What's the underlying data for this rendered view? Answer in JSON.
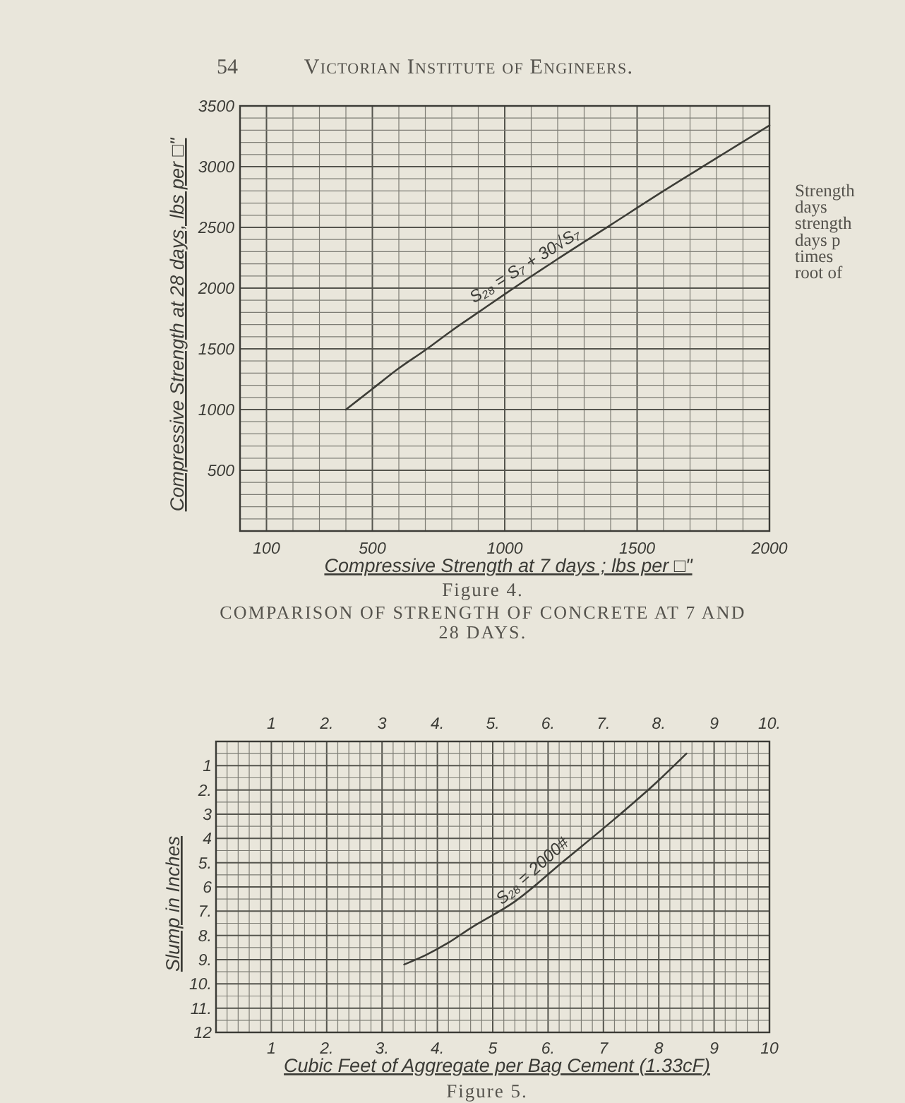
{
  "chart_data": [
    {
      "type": "line",
      "title": "Figure 4.",
      "subtitle": "COMPARISON OF STRENGTH OF CONCRETE AT 7 AND 28 DAYS.",
      "xlabel": "Compressive Strength at 7 days ; lbs per □\"",
      "ylabel": "Compressive Strength at 28 days, lbs per □\"",
      "annotations": [
        "54",
        "Victorian Institute of Engineers.",
        "Strength\ndays\nstrength\ndays p\ntimes\nroot of",
        {
          "text": "S₂₈ = S₇ + 30√S₇",
          "x": 1100,
          "y": 2100
        }
      ],
      "x": [
        400,
        500,
        600,
        700,
        800,
        900,
        1000,
        1200,
        1400,
        1600,
        1800,
        2000
      ],
      "values": [
        1000,
        1170,
        1340,
        1490,
        1650,
        1800,
        1950,
        2240,
        2520,
        2800,
        3070,
        3340
      ],
      "color": "#3d3d37",
      "xlim": [
        0,
        2000
      ],
      "ylim": [
        0,
        3500
      ],
      "xticks": [
        100,
        {
          "value": 200,
          "label": null
        },
        {
          "value": 300,
          "label": null
        },
        {
          "value": 400,
          "label": null
        },
        500,
        {
          "value": 600,
          "label": null
        },
        {
          "value": 700,
          "label": null
        },
        {
          "value": 800,
          "label": null
        },
        {
          "value": 900,
          "label": null
        },
        1000,
        {
          "value": 1100,
          "label": null
        },
        {
          "value": 1200,
          "label": null
        },
        {
          "value": 1300,
          "label": null
        },
        {
          "value": 1400,
          "label": null
        },
        1500,
        {
          "value": 1600,
          "label": null
        },
        {
          "value": 1700,
          "label": null
        },
        {
          "value": 1800,
          "label": null
        },
        {
          "value": 1900,
          "label": null
        },
        2000
      ],
      "yticks": [
        {
          "value": 100,
          "label": null
        },
        {
          "value": 200,
          "label": null
        },
        {
          "value": 300,
          "label": null
        },
        {
          "value": 400,
          "label": null
        },
        500,
        {
          "value": 600,
          "label": null
        },
        {
          "value": 700,
          "label": null
        },
        {
          "value": 800,
          "label": null
        },
        {
          "value": 900,
          "label": null
        },
        1000,
        {
          "value": 1100,
          "label": null
        },
        {
          "value": 1200,
          "label": null
        },
        {
          "value": 1300,
          "label": null
        },
        {
          "value": 1400,
          "label": null
        },
        1500,
        {
          "value": 1600,
          "label": null
        },
        {
          "value": 1700,
          "label": null
        },
        {
          "value": 1800,
          "label": null
        },
        {
          "value": 1900,
          "label": null
        },
        2000,
        {
          "value": 2100,
          "label": null
        },
        {
          "value": 2200,
          "label": null
        },
        {
          "value": 2300,
          "label": null
        },
        {
          "value": 2400,
          "label": null
        },
        2500,
        {
          "value": 2600,
          "label": null
        },
        {
          "value": 2700,
          "label": null
        },
        {
          "value": 2800,
          "label": null
        },
        {
          "value": 2900,
          "label": null
        },
        3000,
        {
          "value": 3100,
          "label": null
        },
        {
          "value": 3200,
          "label": null
        },
        {
          "value": 3300,
          "label": null
        },
        {
          "value": 3400,
          "label": null
        },
        3500
      ],
      "grid": true
    },
    {
      "type": "line",
      "title": "Figure 5.",
      "xlabel": "Cubic Feet of Aggregate per Bag Cement (1.33cF)",
      "ylabel": "Slump in Inches",
      "annotations": [
        {
          "text": "S₂₈ = 2000#",
          "x": 5.9,
          "y": 5.8
        }
      ],
      "x": [
        3.4,
        3.8,
        4.2,
        4.6,
        5.4,
        6.3,
        7.2,
        8.0,
        8.5
      ],
      "values": [
        9.2,
        8.8,
        8.3,
        7.7,
        6.6,
        4.9,
        3.2,
        1.6,
        0.5
      ],
      "color": "#3d3d37",
      "xlim": [
        0,
        10
      ],
      "ylim": [
        12,
        0
      ],
      "xticks": [
        {
          "value": 0.2,
          "label": null
        },
        {
          "value": 0.4,
          "label": null
        },
        {
          "value": 0.6,
          "label": null
        },
        {
          "value": 0.8,
          "label": null
        },
        1,
        {
          "value": 1.2,
          "label": null
        },
        {
          "value": 1.4,
          "label": null
        },
        {
          "value": 1.6,
          "label": null
        },
        {
          "value": 1.8,
          "label": null
        },
        {
          "value": 2,
          "label": "2."
        },
        {
          "value": 2.2,
          "label": null
        },
        {
          "value": 2.4,
          "label": null
        },
        {
          "value": 2.6,
          "label": null
        },
        {
          "value": 2.8,
          "label": null
        },
        {
          "value": 3,
          "label": "3."
        },
        {
          "value": 3.2,
          "label": null
        },
        {
          "value": 3.4,
          "label": null
        },
        {
          "value": 3.6,
          "label": null
        },
        {
          "value": 3.8,
          "label": null
        },
        {
          "value": 4,
          "label": "4."
        },
        {
          "value": 4.2,
          "label": null
        },
        {
          "value": 4.4,
          "label": null
        },
        {
          "value": 4.6,
          "label": null
        },
        {
          "value": 4.8,
          "label": null
        },
        5,
        {
          "value": 5.2,
          "label": null
        },
        {
          "value": 5.4,
          "label": null
        },
        {
          "value": 5.6,
          "label": null
        },
        {
          "value": 5.8,
          "label": null
        },
        {
          "value": 6,
          "label": "6."
        },
        {
          "value": 6.2,
          "label": null
        },
        {
          "value": 6.4,
          "label": null
        },
        {
          "value": 6.6,
          "label": null
        },
        {
          "value": 6.8,
          "label": null
        },
        7,
        {
          "value": 7.2,
          "label": null
        },
        {
          "value": 7.4,
          "label": null
        },
        {
          "value": 7.6,
          "label": null
        },
        {
          "value": 7.8,
          "label": null
        },
        8,
        {
          "value": 8.2,
          "label": null
        },
        {
          "value": 8.4,
          "label": null
        },
        {
          "value": 8.6,
          "label": null
        },
        {
          "value": 8.8,
          "label": null
        },
        9,
        {
          "value": 9.2,
          "label": null
        },
        {
          "value": 9.4,
          "label": null
        },
        {
          "value": 9.6,
          "label": null
        },
        {
          "value": 9.8,
          "label": null
        },
        10
      ],
      "x2lim": [
        0,
        10
      ],
      "x2ticks": [
        1,
        {
          "value": 2,
          "label": "2."
        },
        3,
        {
          "value": 4,
          "label": "4."
        },
        {
          "value": 5,
          "label": "5."
        },
        {
          "value": 6,
          "label": "6."
        },
        {
          "value": 7,
          "label": "7."
        },
        {
          "value": 8,
          "label": "8."
        },
        9,
        {
          "value": 10,
          "label": "10."
        }
      ],
      "yticks": [
        {
          "value": 0.5,
          "label": null
        },
        1,
        {
          "value": 1.5,
          "label": null
        },
        {
          "value": 2,
          "label": "2."
        },
        {
          "value": 2.5,
          "label": null
        },
        3,
        {
          "value": 3.5,
          "label": null
        },
        4,
        {
          "value": 4.5,
          "label": null
        },
        {
          "value": 5,
          "label": "5."
        },
        {
          "value": 5.5,
          "label": null
        },
        6,
        {
          "value": 6.5,
          "label": null
        },
        {
          "value": 7,
          "label": "7."
        },
        {
          "value": 7.5,
          "label": null
        },
        {
          "value": 8,
          "label": "8."
        },
        {
          "value": 8.5,
          "label": null
        },
        {
          "value": 9,
          "label": "9."
        },
        {
          "value": 9.5,
          "label": null
        },
        {
          "value": 10,
          "label": "10."
        },
        {
          "value": 10.5,
          "label": null
        },
        {
          "value": 11,
          "label": "11."
        },
        {
          "value": 11.5,
          "label": null
        },
        12
      ],
      "grid": true
    }
  ]
}
